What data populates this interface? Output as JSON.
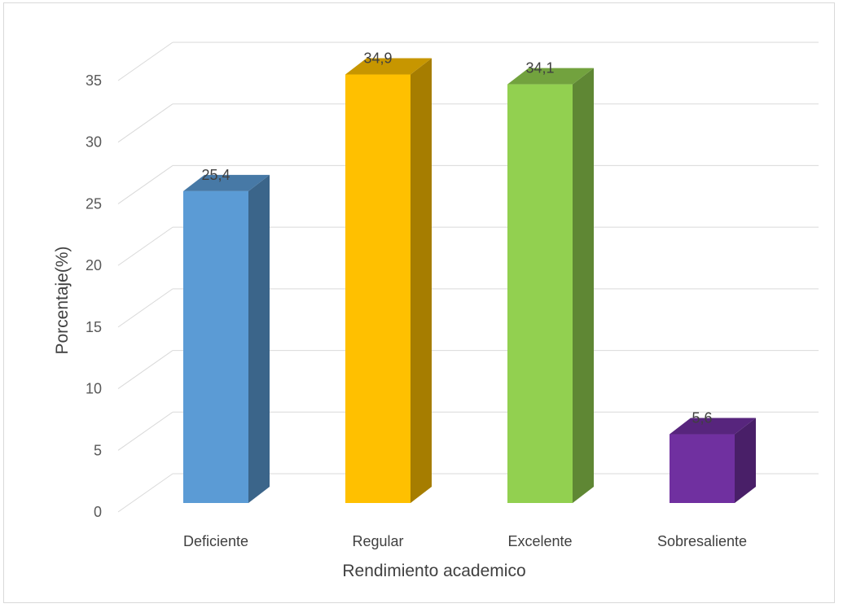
{
  "chart_data": {
    "type": "bar",
    "categories": [
      "Deficiente",
      "Regular",
      "Excelente",
      "Sobresaliente"
    ],
    "values": [
      25.4,
      34.9,
      34.1,
      5.6
    ],
    "value_labels": [
      "25,4",
      "34,9",
      "34,1",
      "5,6"
    ],
    "title": "",
    "xlabel": "Rendimiento academico",
    "ylabel": "Porcentaje(%)",
    "ylim": [
      0,
      35
    ],
    "yticks": [
      "0",
      "5",
      "10",
      "15",
      "20",
      "25",
      "30",
      "35"
    ],
    "grid": true,
    "style": "3d-column",
    "colors": [
      "#5b9bd5",
      "#ffc000",
      "#92d050",
      "#7030a0"
    ]
  }
}
